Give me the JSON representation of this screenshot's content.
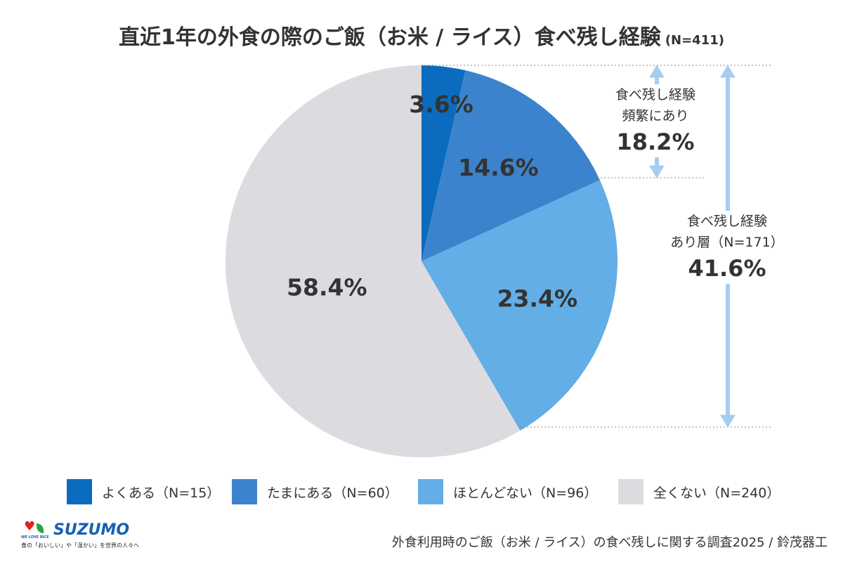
{
  "chart_data": {
    "type": "pie",
    "title": "直近1年の外食の際のご飯（お米 / ライス）食べ残し経験",
    "title_n": "(N=411)",
    "start": "top",
    "direction": "clockwise",
    "slices": [
      {
        "name": "よくある（N=15）",
        "value": 3.6,
        "label": "3.6%",
        "color": "#0b6cbf"
      },
      {
        "name": "たまにある（N=60）",
        "value": 14.6,
        "label": "14.6%",
        "color": "#3c83cd"
      },
      {
        "name": "ほとんどない（N=96）",
        "value": 23.4,
        "label": "23.4%",
        "color": "#63aee6"
      },
      {
        "name": "全くない（N=240）",
        "value": 58.4,
        "label": "58.4%",
        "color": "#dcdbdf"
      }
    ],
    "annotations": [
      {
        "line1": "食べ残し経験",
        "line2": "頻繁にあり",
        "value": "18.2%"
      },
      {
        "line1": "食べ残し経験",
        "line2": "あり層（N=171）",
        "value": "41.6%"
      }
    ],
    "legend_position": "bottom"
  },
  "footer": {
    "source": "外食利用時のご飯（お米 / ライス）の食べ残しに関する調査2025 / 鈴茂器工",
    "logo_brand": "SUZUMO",
    "logo_tag": "WE LOVE RICE",
    "logo_sub": "食の「おいしい」や「温かい」を世界の人々へ"
  },
  "colors": {
    "arrow": "#a6cdef",
    "text": "#333333"
  }
}
